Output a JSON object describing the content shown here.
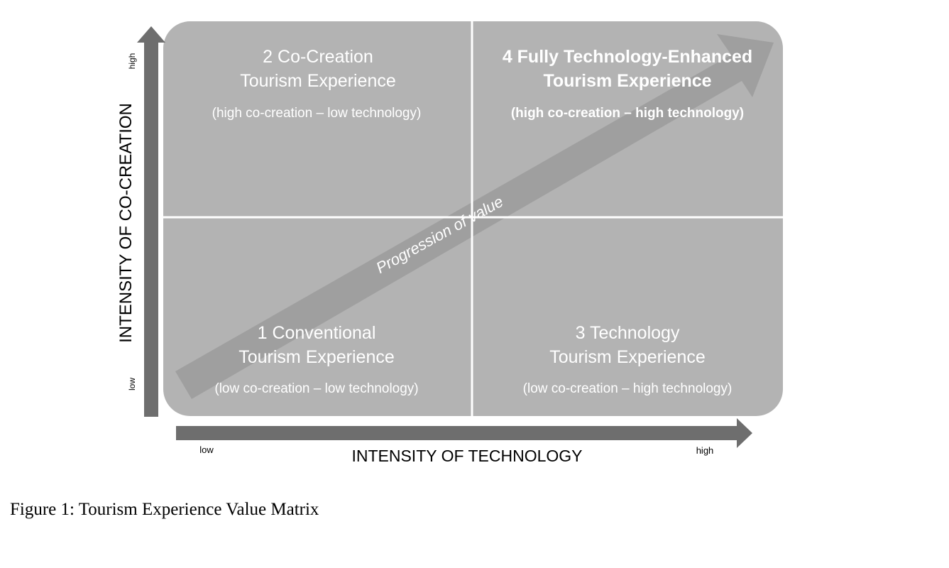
{
  "quadrants": {
    "q2": {
      "title_line1": "2 Co-Creation",
      "title_line2": "Tourism Experience",
      "subtitle": "(high co-creation – low technology)"
    },
    "q4": {
      "title_line1": "4 Fully Technology-Enhanced",
      "title_line2": "Tourism Experience",
      "subtitle": "(high co-creation – high technology)"
    },
    "q1": {
      "title_line1": "1 Conventional",
      "title_line2": "Tourism Experience",
      "subtitle": "(low co-creation – low technology)"
    },
    "q3": {
      "title_line1": "3 Technology",
      "title_line2": "Tourism Experience",
      "subtitle": "(low co-creation – high technology)"
    }
  },
  "progression_label": "Progression of value",
  "y_axis": {
    "label": "INTENSITY OF CO-CREATION",
    "high": "high",
    "low": "low"
  },
  "x_axis": {
    "label": "INTENSITY OF TECHNOLOGY",
    "low": "low",
    "high": "high"
  },
  "caption": "Figure 1: Tourism Experience Value Matrix",
  "colors": {
    "quadrant": "#b3b3b3",
    "arrow": "#6e6e6e",
    "divider": "#ffffff",
    "text": "#ffffff"
  }
}
